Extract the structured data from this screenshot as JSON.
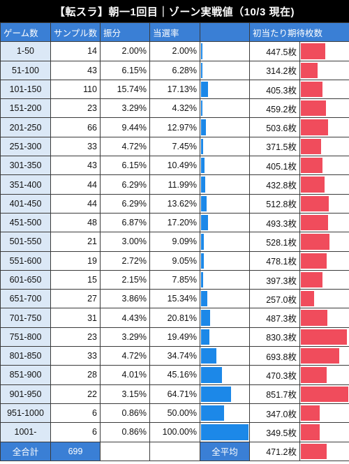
{
  "title": "【転スラ】朝一1回目｜ゾーン実戦値（10/3 現在)",
  "headers": {
    "zone": "ゲーム数",
    "samples": "サンプル数",
    "share": "振分",
    "hit_rate": "当選率",
    "hit_bar": "",
    "expected": "初当たり期待枚数",
    "expected_bar": ""
  },
  "colors": {
    "header": "#3a7fd5",
    "zone_cell": "#dbe8f6",
    "hit_bar": "#1c88e8",
    "expected_bar": "#f04c5c"
  },
  "chart_data": {
    "type": "table",
    "columns": [
      "ゲーム数",
      "サンプル数",
      "振分",
      "当選率",
      "初当たり期待枚数"
    ],
    "rows": [
      {
        "zone": "1-50",
        "samples": "14",
        "share": "2.00%",
        "hit_rate": "2.00%",
        "hit_value": 2.0,
        "expected": "447.5枚",
        "expected_value": 447.5
      },
      {
        "zone": "51-100",
        "samples": "43",
        "share": "6.15%",
        "hit_rate": "6.28%",
        "hit_value": 6.28,
        "expected": "314.2枚",
        "expected_value": 314.2
      },
      {
        "zone": "101-150",
        "samples": "110",
        "share": "15.74%",
        "hit_rate": "17.13%",
        "hit_value": 17.13,
        "expected": "405.3枚",
        "expected_value": 405.3
      },
      {
        "zone": "151-200",
        "samples": "23",
        "share": "3.29%",
        "hit_rate": "4.32%",
        "hit_value": 4.32,
        "expected": "459.2枚",
        "expected_value": 459.2
      },
      {
        "zone": "201-250",
        "samples": "66",
        "share": "9.44%",
        "hit_rate": "12.97%",
        "hit_value": 12.97,
        "expected": "503.6枚",
        "expected_value": 503.6
      },
      {
        "zone": "251-300",
        "samples": "33",
        "share": "4.72%",
        "hit_rate": "7.45%",
        "hit_value": 7.45,
        "expected": "371.5枚",
        "expected_value": 371.5
      },
      {
        "zone": "301-350",
        "samples": "43",
        "share": "6.15%",
        "hit_rate": "10.49%",
        "hit_value": 10.49,
        "expected": "405.1枚",
        "expected_value": 405.1
      },
      {
        "zone": "351-400",
        "samples": "44",
        "share": "6.29%",
        "hit_rate": "11.99%",
        "hit_value": 11.99,
        "expected": "432.8枚",
        "expected_value": 432.8
      },
      {
        "zone": "401-450",
        "samples": "44",
        "share": "6.29%",
        "hit_rate": "13.62%",
        "hit_value": 13.62,
        "expected": "512.8枚",
        "expected_value": 512.8
      },
      {
        "zone": "451-500",
        "samples": "48",
        "share": "6.87%",
        "hit_rate": "17.20%",
        "hit_value": 17.2,
        "expected": "493.3枚",
        "expected_value": 493.3
      },
      {
        "zone": "501-550",
        "samples": "21",
        "share": "3.00%",
        "hit_rate": "9.09%",
        "hit_value": 9.09,
        "expected": "528.1枚",
        "expected_value": 528.1
      },
      {
        "zone": "551-600",
        "samples": "19",
        "share": "2.72%",
        "hit_rate": "9.05%",
        "hit_value": 9.05,
        "expected": "478.1枚",
        "expected_value": 478.1
      },
      {
        "zone": "601-650",
        "samples": "15",
        "share": "2.15%",
        "hit_rate": "7.85%",
        "hit_value": 7.85,
        "expected": "397.3枚",
        "expected_value": 397.3
      },
      {
        "zone": "651-700",
        "samples": "27",
        "share": "3.86%",
        "hit_rate": "15.34%",
        "hit_value": 15.34,
        "expected": "257.0枚",
        "expected_value": 257.0
      },
      {
        "zone": "701-750",
        "samples": "31",
        "share": "4.43%",
        "hit_rate": "20.81%",
        "hit_value": 20.81,
        "expected": "487.3枚",
        "expected_value": 487.3
      },
      {
        "zone": "751-800",
        "samples": "23",
        "share": "3.29%",
        "hit_rate": "19.49%",
        "hit_value": 19.49,
        "expected": "830.3枚",
        "expected_value": 830.3
      },
      {
        "zone": "801-850",
        "samples": "33",
        "share": "4.72%",
        "hit_rate": "34.74%",
        "hit_value": 34.74,
        "expected": "693.8枚",
        "expected_value": 693.8
      },
      {
        "zone": "851-900",
        "samples": "28",
        "share": "4.01%",
        "hit_rate": "45.16%",
        "hit_value": 45.16,
        "expected": "470.3枚",
        "expected_value": 470.3
      },
      {
        "zone": "901-950",
        "samples": "22",
        "share": "3.15%",
        "hit_rate": "64.71%",
        "hit_value": 64.71,
        "expected": "851.7枚",
        "expected_value": 851.7
      },
      {
        "zone": "951-1000",
        "samples": "6",
        "share": "0.86%",
        "hit_rate": "50.00%",
        "hit_value": 50.0,
        "expected": "347.0枚",
        "expected_value": 347.0
      },
      {
        "zone": "1001-",
        "samples": "6",
        "share": "0.86%",
        "hit_rate": "100.00%",
        "hit_value": 100.0,
        "expected": "349.5枚",
        "expected_value": 349.5
      }
    ],
    "hit_rate_max": 100,
    "expected_max": 851.7
  },
  "footer": {
    "total_label": "全合計",
    "total_samples": "699",
    "avg_label": "全平均",
    "avg_expected": "471.2枚",
    "avg_value": 471.2
  }
}
